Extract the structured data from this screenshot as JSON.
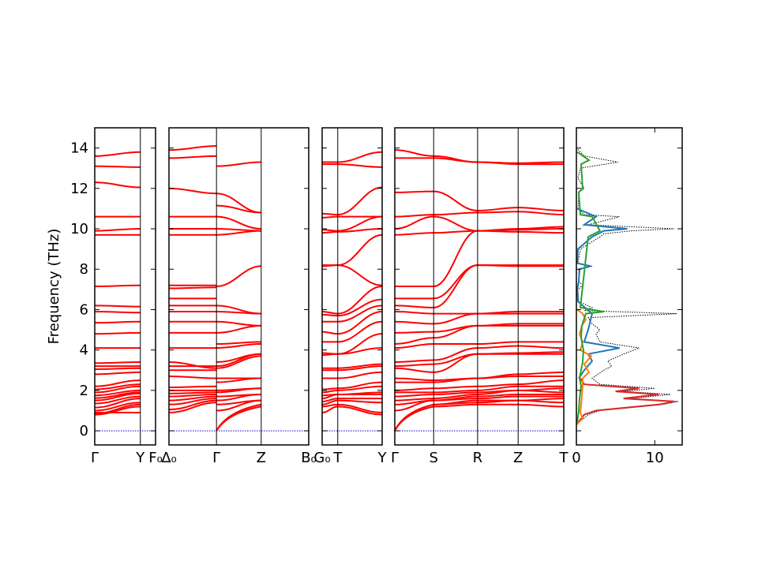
{
  "chart_data": {
    "type": "line",
    "title": "",
    "ylabel": "Frequency (THz)",
    "ylim": [
      -0.7,
      15
    ],
    "yticks": [
      0,
      2,
      4,
      6,
      8,
      10,
      12,
      14
    ],
    "grid": false,
    "colors": {
      "bands": "#ff0000",
      "zero_line": "#0000cc",
      "total_dos": "#000000",
      "dos_series": [
        "#d62728",
        "#1f77b4",
        "#ff7f0e",
        "#2ca02c"
      ]
    },
    "panels": [
      {
        "kind": "band",
        "x_range": [
          0,
          1
        ],
        "ticks": [
          {
            "x": 0,
            "label": "Γ"
          },
          {
            "x": 0.75,
            "label": "Y"
          },
          {
            "x": 1,
            "label": "F₀"
          }
        ],
        "branches": [
          {
            "start": [
              0.8,
              0.85,
              0.9,
              1.0,
              1.15,
              1.35,
              1.5,
              1.62,
              1.75,
              1.9,
              2.05,
              2.2,
              2.8,
              3.05,
              3.2,
              3.35,
              4.1,
              4.8,
              5.35,
              5.9,
              6.2,
              7.15,
              9.7,
              9.9,
              10.6,
              12.3,
              13.1,
              13.6
            ],
            "end": [
              1.2,
              1.3,
              0.9,
              1.4,
              1.6,
              1.7,
              1.85,
              1.9,
              2.0,
              2.2,
              2.3,
              2.5,
              2.9,
              3.1,
              3.2,
              3.4,
              4.1,
              4.85,
              5.4,
              5.85,
              6.15,
              7.2,
              9.7,
              10.0,
              10.6,
              12.05,
              13.05,
              13.8
            ],
            "acoustic": 3
          }
        ]
      },
      {
        "kind": "band",
        "x_range": [
          0,
          1
        ],
        "ticks": [
          {
            "x": 0,
            "label": "Δ₀"
          },
          {
            "x": 0.34,
            "label": "Γ"
          },
          {
            "x": 0.66,
            "label": "Z"
          },
          {
            "x": 1,
            "label": "B₀"
          }
        ],
        "branches": [
          {
            "start": [
              0.9,
              1.05,
              1.3,
              1.5,
              1.7,
              1.85,
              2.0,
              2.15,
              2.7,
              3.0,
              3.2,
              3.4,
              4.1,
              4.85,
              5.4,
              5.9,
              6.2,
              6.55,
              7.05,
              7.2,
              9.7,
              10.0,
              10.6,
              12.0,
              13.5,
              13.9
            ],
            "end": [
              1.4,
              1.5,
              1.6,
              1.7,
              1.8,
              1.9,
              2.0,
              2.2,
              2.6,
              3.0,
              3.2,
              3.1,
              4.1,
              4.85,
              5.4,
              5.9,
              6.2,
              6.55,
              7.1,
              7.2,
              9.7,
              10.0,
              10.6,
              11.75,
              13.6,
              14.1
            ]
          },
          {
            "start": [
              0.0,
              0.0,
              0.0,
              1.0,
              1.3,
              1.5,
              1.7,
              1.9,
              2.0,
              2.4,
              2.6,
              3.1,
              3.2,
              3.4,
              4.1,
              4.3,
              4.85,
              5.4,
              5.9,
              6.2,
              7.15,
              9.7,
              10.0,
              10.6,
              11.15,
              11.75,
              13.1
            ],
            "end": [
              1.2,
              1.3,
              1.3,
              1.5,
              1.5,
              1.8,
              1.8,
              2.1,
              2.1,
              2.6,
              2.6,
              3.7,
              3.8,
              3.8,
              4.3,
              4.4,
              5.2,
              5.2,
              5.8,
              5.8,
              8.15,
              9.9,
              9.9,
              10.0,
              10.8,
              10.8,
              13.3
            ],
            "acoustic": 3
          }
        ]
      },
      {
        "kind": "band",
        "x_range": [
          0,
          1
        ],
        "ticks": [
          {
            "x": 0,
            "label": "G₀"
          },
          {
            "x": 0.26,
            "label": "T"
          },
          {
            "x": 1,
            "label": "Y"
          }
        ],
        "branches": [
          {
            "start": [
              0.9,
              1.2,
              1.3,
              1.45,
              1.6,
              1.75,
              1.9,
              2.05,
              2.6,
              3.0,
              3.1,
              3.75,
              3.85,
              4.4,
              4.9,
              5.4,
              5.75,
              5.9,
              8.15,
              8.2,
              9.8,
              9.95,
              10.55,
              10.75,
              13.2,
              13.3
            ],
            "end": [
              1.2,
              1.3,
              1.5,
              1.6,
              1.8,
              1.8,
              2.0,
              2.1,
              2.6,
              3.0,
              3.1,
              3.8,
              3.8,
              4.4,
              4.8,
              5.4,
              5.7,
              5.8,
              8.2,
              8.2,
              9.85,
              9.9,
              10.6,
              10.7,
              13.2,
              13.3
            ]
          },
          {
            "start": [
              1.2,
              1.3,
              1.5,
              1.6,
              1.8,
              1.8,
              2.0,
              2.1,
              2.6,
              3.0,
              3.1,
              3.8,
              3.8,
              4.4,
              4.8,
              5.4,
              5.7,
              5.8,
              8.2,
              8.2,
              9.85,
              9.9,
              10.6,
              10.7,
              13.2,
              13.3
            ],
            "end": [
              0.8,
              0.9,
              1.4,
              1.6,
              1.8,
              1.9,
              2.2,
              2.4,
              2.9,
              3.2,
              3.3,
              4.1,
              4.8,
              5.4,
              5.9,
              6.2,
              6.5,
              7.15,
              7.2,
              9.7,
              10.0,
              10.6,
              10.6,
              12.05,
              13.05,
              13.8
            ]
          }
        ]
      },
      {
        "kind": "band",
        "x_range": [
          0,
          1
        ],
        "ticks": [
          {
            "x": 0,
            "label": "Γ"
          },
          {
            "x": 0.23,
            "label": "S"
          },
          {
            "x": 0.49,
            "label": "R"
          },
          {
            "x": 0.73,
            "label": "Z"
          },
          {
            "x": 1,
            "label": "T"
          }
        ],
        "branches": [
          {
            "start": [
              0.0,
              0.0,
              0.0,
              1.0,
              1.3,
              1.5,
              1.7,
              1.9,
              2.0,
              2.4,
              2.6,
              3.1,
              3.2,
              3.4,
              4.1,
              4.3,
              4.85,
              5.4,
              5.9,
              6.2,
              6.55,
              7.15,
              9.7,
              10.0,
              10.6,
              11.8,
              13.5,
              13.9
            ],
            "end": [
              1.2,
              1.3,
              1.3,
              1.5,
              1.5,
              1.6,
              1.8,
              1.9,
              2.1,
              2.4,
              2.5,
              2.9,
              3.3,
              3.5,
              4.3,
              4.6,
              4.9,
              5.3,
              5.8,
              6.1,
              6.55,
              7.15,
              9.8,
              10.6,
              10.7,
              11.85,
              13.5,
              13.6
            ],
            "acoustic": 3
          },
          {
            "start": [
              1.2,
              1.3,
              1.3,
              1.5,
              1.5,
              1.6,
              1.8,
              1.9,
              2.1,
              2.4,
              2.5,
              2.9,
              3.3,
              3.5,
              4.3,
              4.6,
              4.9,
              5.3,
              5.8,
              6.1,
              6.55,
              7.15,
              9.8,
              10.6,
              10.7,
              11.85,
              13.5,
              13.6
            ],
            "end": [
              1.3,
              1.4,
              1.5,
              1.6,
              1.7,
              1.8,
              1.9,
              2.0,
              2.2,
              2.6,
              2.6,
              3.8,
              3.8,
              4.1,
              4.3,
              5.2,
              5.2,
              5.8,
              5.8,
              8.2,
              8.2,
              9.9,
              9.9,
              9.9,
              10.8,
              10.9,
              13.3,
              13.3
            ]
          },
          {
            "start": [
              1.3,
              1.4,
              1.5,
              1.6,
              1.7,
              1.8,
              1.9,
              2.0,
              2.2,
              2.6,
              2.6,
              3.8,
              3.8,
              4.1,
              4.3,
              5.2,
              5.2,
              5.8,
              5.8,
              8.2,
              8.2,
              9.9,
              9.9,
              9.9,
              10.8,
              10.9,
              13.3,
              13.3
            ],
            "end": [
              1.3,
              1.5,
              1.5,
              1.7,
              1.8,
              2.0,
              2.0,
              2.2,
              2.3,
              2.7,
              2.8,
              3.8,
              3.85,
              4.2,
              4.4,
              5.2,
              5.3,
              5.8,
              5.9,
              8.15,
              8.2,
              9.85,
              9.95,
              10.0,
              10.85,
              11.05,
              13.2,
              13.25
            ]
          },
          {
            "start": [
              1.3,
              1.5,
              1.5,
              1.7,
              1.8,
              2.0,
              2.0,
              2.2,
              2.3,
              2.7,
              2.8,
              3.8,
              3.85,
              4.2,
              4.4,
              5.2,
              5.3,
              5.8,
              5.9,
              8.15,
              8.2,
              9.85,
              9.95,
              10.0,
              10.85,
              11.05,
              13.2,
              13.25
            ],
            "end": [
              1.2,
              1.4,
              1.6,
              1.7,
              1.8,
              1.9,
              2.1,
              2.2,
              2.5,
              2.7,
              2.9,
              3.8,
              3.9,
              4.1,
              4.4,
              5.2,
              5.3,
              5.8,
              5.9,
              8.15,
              8.2,
              9.8,
              10.0,
              10.1,
              10.7,
              10.9,
              13.2,
              13.3
            ]
          }
        ]
      },
      {
        "kind": "dos",
        "x_range": [
          0,
          13.5
        ],
        "ticks": [
          {
            "x": 0,
            "label": "0"
          },
          {
            "x": 10,
            "label": "10"
          }
        ],
        "series": [
          {
            "color": "#000000",
            "dotted": true,
            "freq": [
              0.3,
              0.8,
              1.0,
              1.3,
              1.45,
              1.6,
              1.8,
              1.95,
              2.1,
              2.3,
              2.6,
              3.0,
              3.2,
              3.45,
              3.8,
              4.1,
              4.4,
              4.8,
              5.0,
              5.3,
              5.6,
              5.8,
              5.95,
              6.1,
              6.4,
              7.0,
              7.2,
              7.4,
              8.0,
              8.15,
              8.3,
              9.0,
              9.6,
              9.75,
              9.9,
              10.0,
              10.2,
              10.6,
              10.7,
              11.0,
              11.8,
              12.0,
              12.5,
              13.0,
              13.3,
              13.6,
              14.0
            ],
            "dos": [
              0.0,
              1.5,
              3.0,
              11.0,
              13.0,
              7.0,
              12.0,
              6.0,
              10.0,
              3.0,
              2.0,
              3.5,
              4.5,
              4.0,
              6.0,
              8.0,
              3.0,
              2.5,
              3.0,
              2.0,
              1.5,
              12.8,
              1.0,
              2.0,
              0.3,
              0.2,
              0.8,
              0.3,
              0.3,
              2.0,
              0.2,
              0.5,
              3.0,
              3.5,
              7.0,
              12.5,
              1.5,
              5.5,
              1.0,
              0.2,
              0.3,
              1.0,
              0.2,
              0.5,
              5.3,
              1.0,
              0.0
            ]
          },
          {
            "color": "#d62728",
            "freq": [
              0.3,
              0.8,
              1.0,
              1.3,
              1.45,
              1.6,
              1.8,
              1.95,
              2.1,
              2.3,
              2.6
            ],
            "dos": [
              0.0,
              1.0,
              2.5,
              10.5,
              12.5,
              6.0,
              10.5,
              5.0,
              8.0,
              1.0,
              0.5
            ]
          },
          {
            "color": "#1f77b4",
            "freq": [
              2.6,
              3.0,
              3.45,
              3.8,
              4.1,
              4.4,
              5.0,
              5.8,
              6.4,
              7.0,
              7.4,
              8.0,
              8.15,
              8.3,
              9.0,
              9.6,
              9.9,
              10.0,
              10.2,
              10.6,
              11.0
            ],
            "dos": [
              0.3,
              1.0,
              2.0,
              1.5,
              5.5,
              1.0,
              1.5,
              2.0,
              0.2,
              0.1,
              0.3,
              0.4,
              1.8,
              0.1,
              0.2,
              2.0,
              3.5,
              6.5,
              1.0,
              2.5,
              0.1
            ]
          },
          {
            "color": "#ff7f0e",
            "freq": [
              0.3,
              0.6,
              0.9,
              1.3,
              1.7,
              2.2,
              2.6,
              2.9,
              3.3,
              3.7,
              4.0,
              4.4,
              4.8,
              5.2,
              5.5,
              5.8,
              6.0
            ],
            "dos": [
              0.0,
              0.8,
              0.5,
              0.6,
              0.7,
              0.8,
              0.8,
              1.6,
              1.0,
              1.9,
              0.5,
              0.8,
              0.4,
              0.7,
              1.2,
              0.8,
              0.1
            ]
          },
          {
            "color": "#2ca02c",
            "freq": [
              0.4,
              1.0,
              1.6,
              2.2,
              2.6,
              3.4,
              4.0,
              4.6,
              5.2,
              5.8,
              5.9,
              6.1,
              9.6,
              9.9,
              10.6,
              10.7,
              11.8,
              12.0,
              13.2,
              13.4,
              13.8
            ],
            "dos": [
              0.1,
              0.3,
              0.4,
              0.6,
              0.4,
              0.8,
              0.9,
              0.6,
              0.7,
              1.2,
              3.5,
              0.5,
              1.5,
              3.0,
              2.0,
              0.5,
              0.3,
              0.8,
              0.6,
              1.6,
              0.1
            ]
          }
        ]
      }
    ]
  }
}
